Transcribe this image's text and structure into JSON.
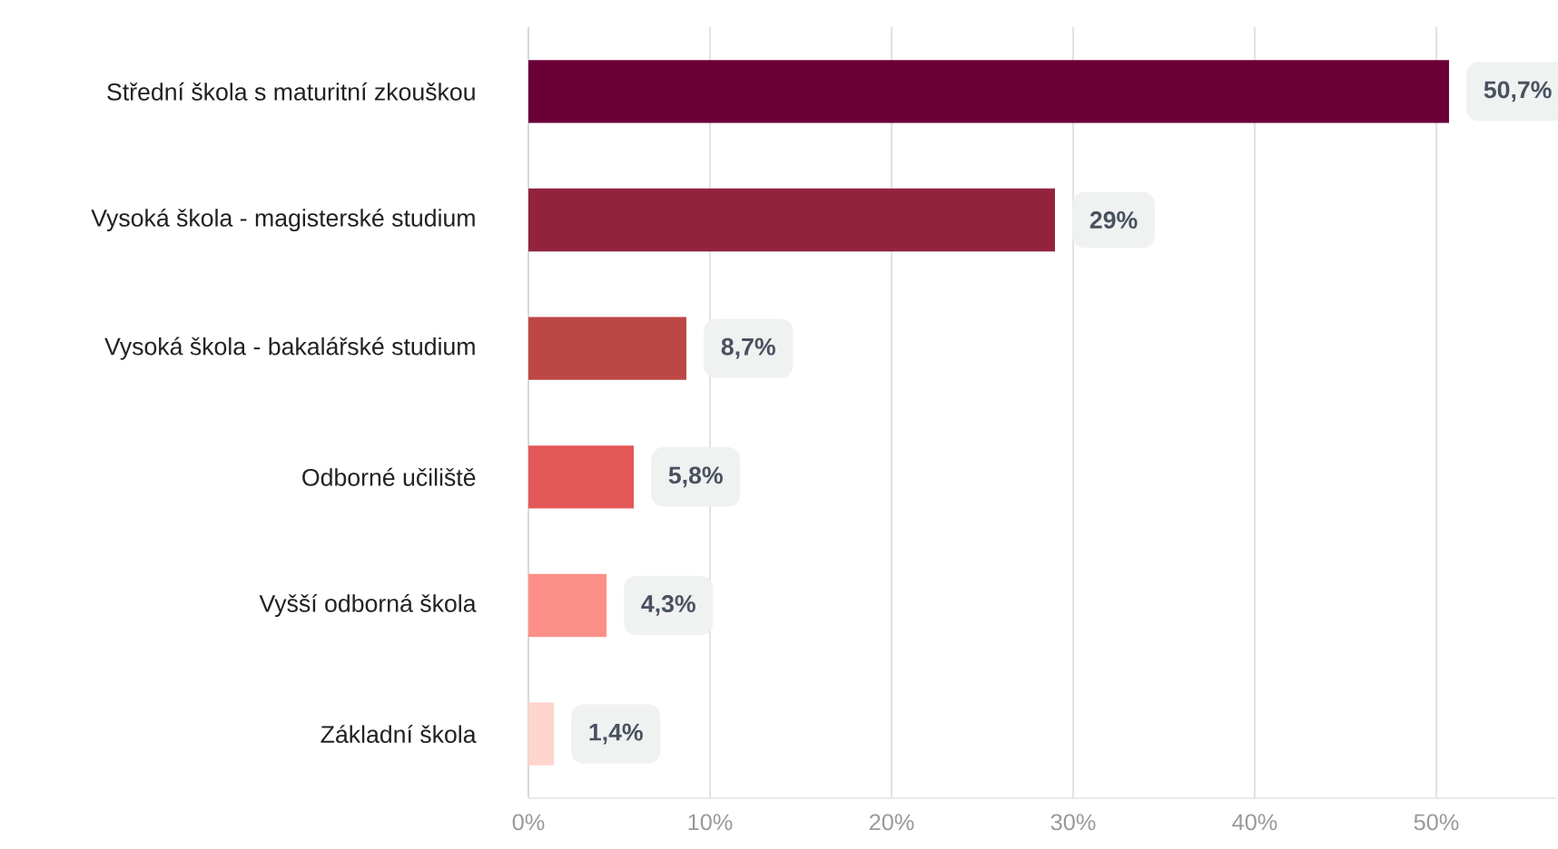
{
  "chart_data": {
    "type": "bar",
    "orientation": "horizontal",
    "categories": [
      "Střední škola s maturitní zkouškou",
      "Vysoká škola - magisterské studium",
      "Vysoká škola - bakalářské studium",
      "Odborné učiliště",
      "Vyšší odborná škola",
      "Základní škola"
    ],
    "values": [
      50.7,
      29,
      8.7,
      5.8,
      4.3,
      1.4
    ],
    "value_labels": [
      "50,7%",
      "29%",
      "8,7%",
      "5,8%",
      "4,3%",
      "1,4%"
    ],
    "colors": [
      "#6a0037",
      "#92233d",
      "#bd4744",
      "#e35757",
      "#fc9088",
      "#ffd4cd"
    ],
    "xlim": [
      0,
      56.6
    ],
    "xticks": [
      {
        "value": 0,
        "label": "0%"
      },
      {
        "value": 10,
        "label": "10%"
      },
      {
        "value": 20,
        "label": "20%"
      },
      {
        "value": 30,
        "label": "30%"
      },
      {
        "value": 40,
        "label": "40%"
      },
      {
        "value": 50,
        "label": "50%"
      }
    ],
    "grid": "x"
  }
}
